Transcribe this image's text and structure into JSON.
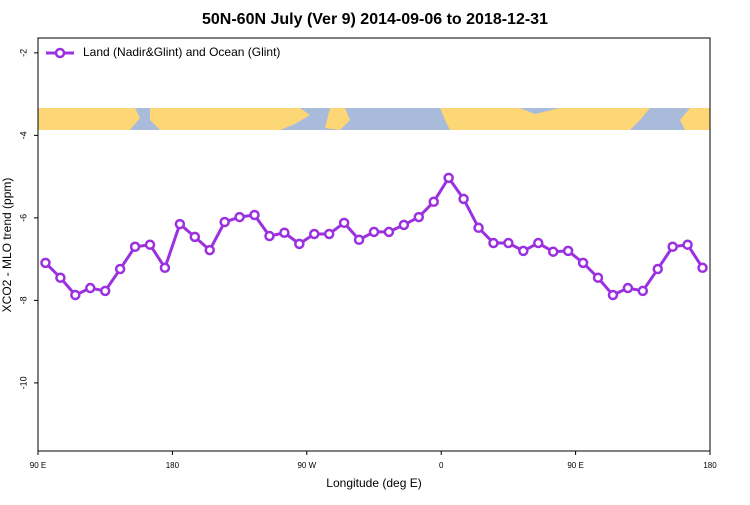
{
  "chart_data": {
    "type": "line",
    "title": "50N-60N July (Ver 9)   2014-09-06 to 2018-12-31",
    "x_label": "Longitude (deg E)",
    "y_label": "XCO2 - MLO trend (ppm)",
    "x": [
      95,
      105,
      115,
      125,
      135,
      145,
      155,
      165,
      175,
      185,
      195,
      205,
      215,
      225,
      235,
      245,
      255,
      265,
      275,
      285,
      295,
      305,
      315,
      325,
      335,
      345,
      355,
      365,
      375,
      385,
      395,
      405,
      415,
      425,
      435,
      445,
      455,
      465,
      475,
      485,
      495,
      505,
      515,
      525,
      535
    ],
    "series": [
      {
        "name": "Land (Nadir&Glint) and Ocean (Glint)",
        "color": "#9b30e0",
        "values": [
          -7.09,
          -7.45,
          -7.87,
          -7.7,
          -7.77,
          -7.24,
          -6.7,
          -6.65,
          -7.21,
          -6.15,
          -6.46,
          -6.78,
          -6.1,
          -5.98,
          -5.93,
          -6.44,
          -6.36,
          -6.63,
          -6.39,
          -6.39,
          -6.12,
          -6.53,
          -6.34,
          -6.34,
          -6.17,
          -5.98,
          -5.61,
          -5.03,
          -5.54,
          -6.24,
          -6.61,
          -6.61,
          -6.8,
          -6.61,
          -6.82,
          -6.8,
          -7.09,
          -7.45,
          -7.87,
          -7.7,
          -7.77,
          -7.24,
          -6.7,
          -6.65,
          -7.21
        ]
      }
    ],
    "xlim": [
      90,
      540
    ],
    "xticks": [
      {
        "value": 90,
        "label": "90 E"
      },
      180,
      {
        "value": 270,
        "label": "90 W"
      },
      {
        "value": 360,
        "label": "0"
      },
      {
        "value": 450,
        "label": "90 E"
      },
      {
        "value": 540,
        "label": "180"
      }
    ],
    "ylim": [
      -11.65,
      -1.64
    ],
    "yticks": [
      -2,
      -4,
      -6,
      -8,
      -10
    ],
    "legend": "top-left"
  }
}
